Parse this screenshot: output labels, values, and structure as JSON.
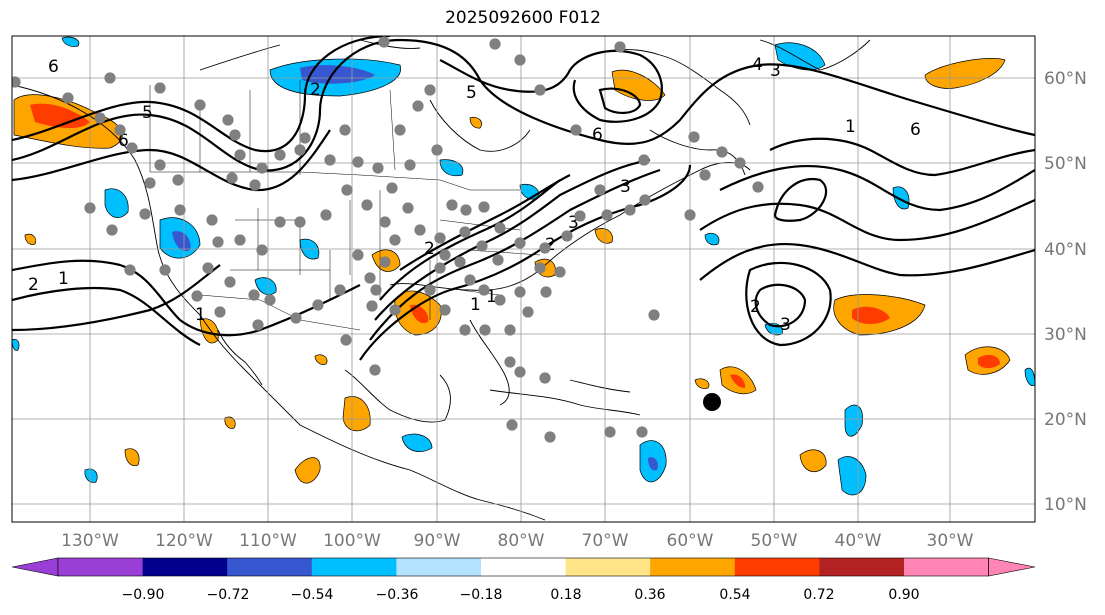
{
  "title": "2025092600 F012",
  "map": {
    "lon_labels": [
      "130°W",
      "120°W",
      "110°W",
      "100°W",
      "90°W",
      "80°W",
      "70°W",
      "60°W",
      "50°W",
      "40°W",
      "30°W"
    ],
    "lat_labels": [
      "60°N",
      "50°N",
      "40°N",
      "30°N",
      "20°N",
      "10°N"
    ],
    "gridline_color": "#9a9a9a",
    "axis_label_color": "#777777",
    "contour_labels": [
      "6",
      "1",
      "2",
      "5",
      "6",
      "2",
      "4",
      "3",
      "6",
      "1",
      "6",
      "2",
      "1",
      "3",
      "1",
      "2",
      "5",
      "3",
      "2",
      "3",
      "1"
    ]
  },
  "colorbar": {
    "tick_labels": [
      "−0.90",
      "−0.72",
      "−0.54",
      "−0.36",
      "−0.18",
      "0.18",
      "0.36",
      "0.54",
      "0.72",
      "0.90"
    ],
    "colors": [
      "#9a3fd6",
      "#00008c",
      "#3657d0",
      "#00bfff",
      "#b3e2ff",
      "#ffffff",
      "#ffe48a",
      "#ffa500",
      "#ff3c00",
      "#b22222",
      "#ff85b4"
    ]
  }
}
